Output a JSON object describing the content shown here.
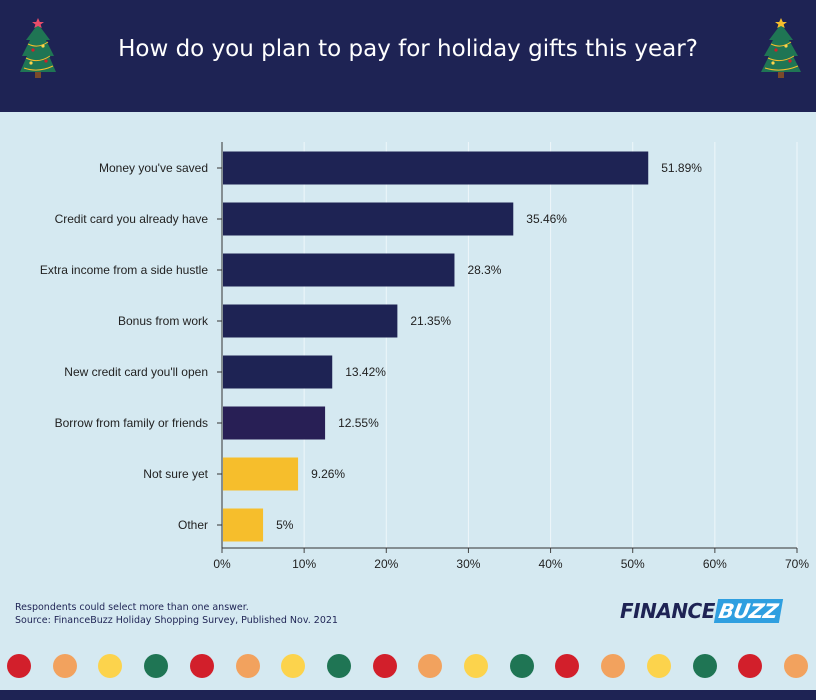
{
  "header": {
    "title": "How do you plan to pay for holiday gifts this year?"
  },
  "chart_data": {
    "type": "bar",
    "orientation": "horizontal",
    "title": "How do you plan to pay for holiday gifts this year?",
    "categories": [
      "Money you've saved",
      "Credit card you already have",
      "Extra income from a side hustle",
      "Bonus from work",
      "New credit card you'll open",
      "Borrow from family or friends",
      "Not sure yet",
      "Other"
    ],
    "values": [
      51.89,
      35.46,
      28.3,
      21.35,
      13.42,
      12.55,
      9.26,
      5
    ],
    "value_labels": [
      "51.89%",
      "35.46%",
      "28.3%",
      "21.35%",
      "13.42%",
      "12.55%",
      "9.26%",
      "5%"
    ],
    "bar_colors": [
      "#1e2354",
      "#1e2354",
      "#1e2354",
      "#1e2354",
      "#1e2354",
      "#281f55",
      "#f6be2c",
      "#f6be2c"
    ],
    "xlim": [
      0,
      70
    ],
    "xticks": [
      "0%",
      "10%",
      "20%",
      "30%",
      "40%",
      "50%",
      "60%",
      "70%"
    ],
    "grid": true
  },
  "footer": {
    "note": "Respondents could select more than one answer.",
    "source": "Source: FinanceBuzz Holiday Shopping Survey, Published Nov. 2021",
    "logo_part1": "FINANCE",
    "logo_part2": "BUZZ"
  },
  "colors": {
    "navy": "#1e2354",
    "background": "#d5e9f1",
    "yellow": "#f6be2c",
    "red": "#d21f2b",
    "orange": "#f2a25e",
    "light_yellow": "#fcd34c",
    "green": "#1f7554"
  },
  "decoration": {
    "tree_icon": "christmas-tree-icon",
    "dot_colors": [
      "#d21f2b",
      "#f2a25e",
      "#fcd34c",
      "#1f7554",
      "#d21f2b",
      "#f2a25e",
      "#fcd34c",
      "#1f7554",
      "#d21f2b",
      "#f2a25e",
      "#fcd34c",
      "#1f7554",
      "#d21f2b",
      "#f2a25e",
      "#fcd34c",
      "#1f7554",
      "#d21f2b",
      "#f2a25e"
    ]
  }
}
